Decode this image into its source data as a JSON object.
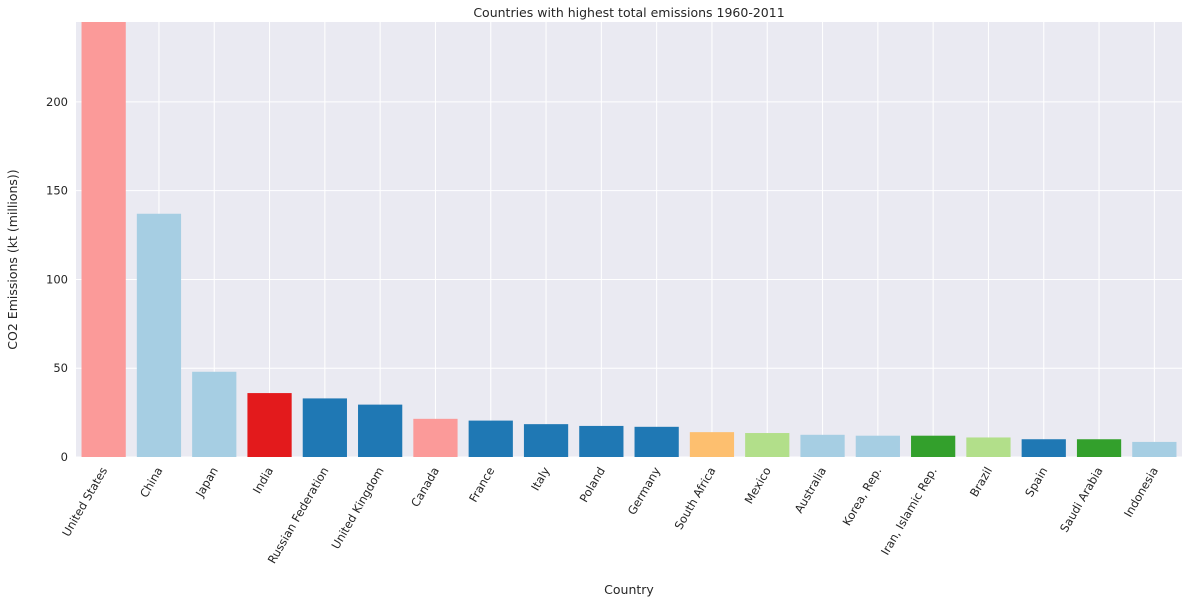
{
  "chart_data": {
    "type": "bar",
    "title": "Countries with highest total emissions 1960-2011",
    "xlabel": "Country",
    "ylabel": "CO2 Emissions (kt (millions))",
    "ylim": [
      0,
      245
    ],
    "yticks": [
      0,
      50,
      100,
      150,
      200
    ],
    "grid": true,
    "categories": [
      "United States",
      "China",
      "Japan",
      "India",
      "Russian Federation",
      "United Kingdom",
      "Canada",
      "France",
      "Italy",
      "Poland",
      "Germany",
      "South Africa",
      "Mexico",
      "Australia",
      "Korea, Rep.",
      "Iran, Islamic Rep.",
      "Brazil",
      "Spain",
      "Saudi Arabia",
      "Indonesia"
    ],
    "values": [
      245,
      137,
      48,
      36,
      33,
      29.5,
      21.5,
      20.5,
      18.5,
      17.5,
      17,
      14,
      13.5,
      12.5,
      12,
      12,
      11,
      10,
      10,
      8.5
    ],
    "colors": [
      "#fb9a99",
      "#a6cee3",
      "#a6cee3",
      "#e31a1c",
      "#1f78b4",
      "#1f78b4",
      "#fb9a99",
      "#1f78b4",
      "#1f78b4",
      "#1f78b4",
      "#1f78b4",
      "#fdbf6f",
      "#b2df8a",
      "#a6cee3",
      "#a6cee3",
      "#33a02c",
      "#b2df8a",
      "#1f78b4",
      "#33a02c",
      "#a6cee3"
    ],
    "background_color": "#eaeaf2",
    "grid_color": "#ffffff"
  }
}
